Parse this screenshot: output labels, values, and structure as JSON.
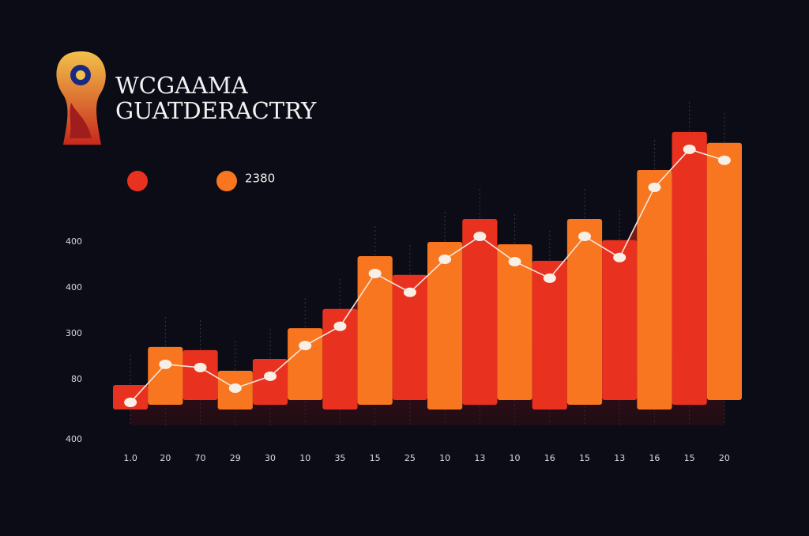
{
  "chart_data": {
    "type": "bar",
    "title_lines": [
      "WCGAAMA",
      "GUATDERACTRY"
    ],
    "legend": [
      {
        "label": "2380",
        "color": "#f7761f"
      }
    ],
    "categories": [
      "1.0",
      "20",
      "70",
      "29",
      "30",
      "10",
      "35",
      "15",
      "25",
      "10",
      "13",
      "10",
      "16",
      "15",
      "13",
      "16",
      "15",
      "20"
    ],
    "series": [
      {
        "color": "#e8321f",
        "alt_color": "#f7761f",
        "values": [
          50,
          133,
          126,
          81,
          107,
          174,
          216,
          331,
          290,
          362,
          412,
          357,
          321,
          412,
          366,
          519,
          602,
          578
        ]
      }
    ],
    "ylim": [
      0,
      700
    ],
    "yticks": [
      {
        "value": 0,
        "label": "400"
      },
      {
        "value": 100,
        "label": "80"
      },
      {
        "value": 200,
        "label": "300"
      },
      {
        "value": 300,
        "label": "400"
      },
      400
    ],
    "grid": false
  }
}
